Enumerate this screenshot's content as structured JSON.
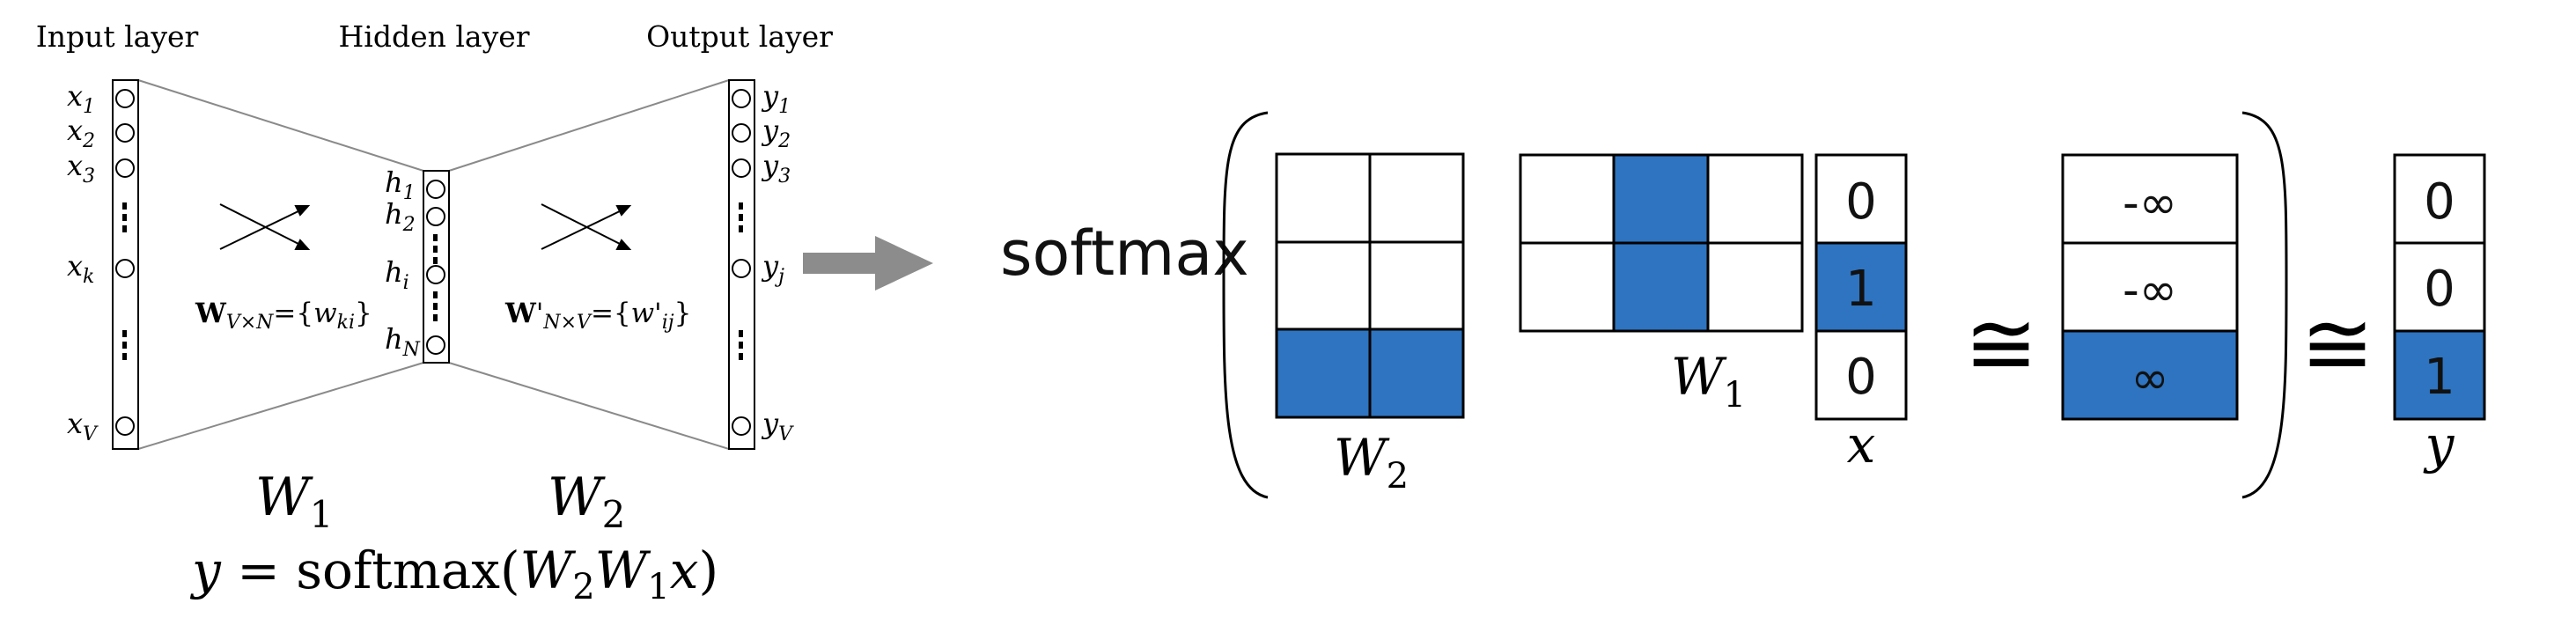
{
  "network": {
    "layer_labels": {
      "input": "Input layer",
      "hidden": "Hidden layer",
      "output": "Output layer"
    },
    "input_nodes": [
      "x",
      "x",
      "x",
      "x",
      "x"
    ],
    "input_subs": [
      "1",
      "2",
      "3",
      "k",
      "V"
    ],
    "hidden_nodes": [
      "h",
      "h",
      "h",
      "h"
    ],
    "hidden_subs": [
      "1",
      "2",
      "i",
      "N"
    ],
    "output_nodes": [
      "y",
      "y",
      "y",
      "y",
      "y"
    ],
    "output_subs": [
      "1",
      "2",
      "3",
      "j",
      "V"
    ],
    "weight_left": {
      "bold": "W",
      "sub": "V×N",
      "eq": "={",
      "w": "w",
      "wsub": "ki",
      "close": "}"
    },
    "weight_right": {
      "bold": "W",
      "prime": "'",
      "sub": "N×V",
      "eq": "={",
      "w": "w'",
      "wsub": "ij",
      "close": "}"
    },
    "w1_label": {
      "base": "W",
      "sub": "1"
    },
    "w2_label": {
      "base": "W",
      "sub": "2"
    },
    "equation": {
      "lhs": "y",
      "eq": " = softmax(",
      "w2": "W",
      "w2sub": "2",
      "w1": "W",
      "w1sub": "1",
      "x": "x",
      "close": ")"
    }
  },
  "matrix_section": {
    "softmax_label": "softmax",
    "w2_label": {
      "base": "W",
      "sub": "2"
    },
    "w1_label": {
      "base": "W",
      "sub": "1"
    },
    "x_label": "x",
    "y_label": "y",
    "congruent_symbol": "≅",
    "x_vector": [
      "0",
      "1",
      "0"
    ],
    "logits": [
      "-∞",
      "-∞",
      "∞"
    ],
    "y_vector": [
      "0",
      "0",
      "1"
    ]
  },
  "colors": {
    "fill_blue": "#2e74c0",
    "line": "#000000",
    "gray_line": "#8a8a8a",
    "arrow_gray": "#8c8c8c"
  }
}
